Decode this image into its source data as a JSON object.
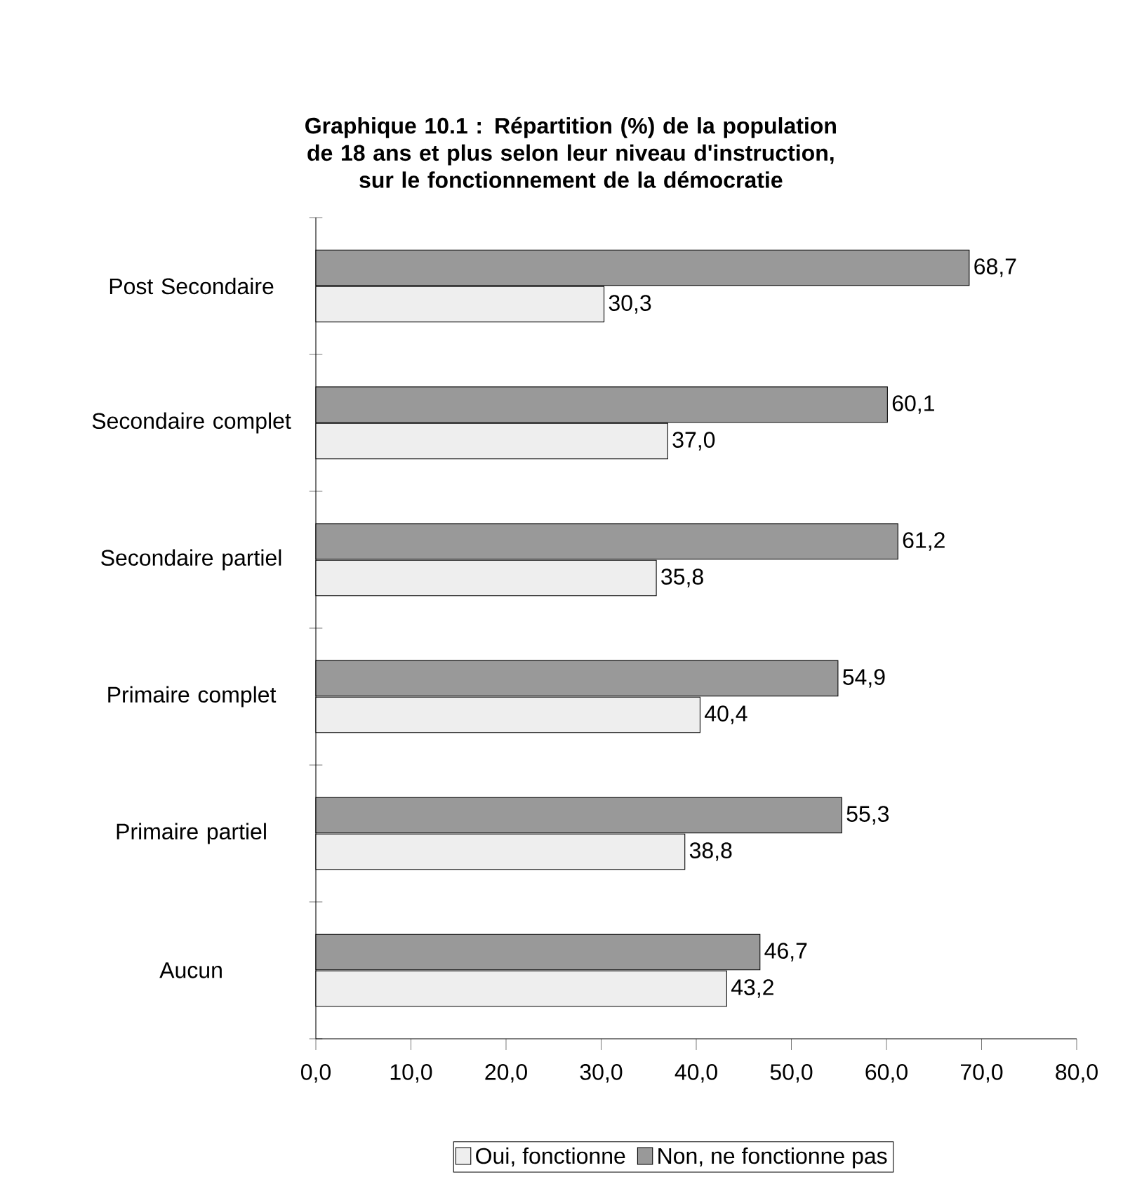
{
  "chart_data": {
    "type": "bar",
    "orientation": "horizontal",
    "title": "Graphique 10.1 : Répartition (%) de la population de 18 ans et plus selon leur niveau d'instruction, sur le fonctionnement de la démocratie",
    "categories": [
      "Post Secondaire",
      "Secondaire complet",
      "Secondaire partiel",
      "Primaire complet",
      "Primaire partiel",
      "Aucun"
    ],
    "series": [
      {
        "name": "Oui, fonctionne",
        "color": "#eeeeee",
        "values": [
          30.3,
          37.0,
          35.8,
          40.4,
          38.8,
          43.2
        ],
        "value_labels": [
          "30,3",
          "37,0",
          "35,8",
          "40,4",
          "38,8",
          "43,2"
        ]
      },
      {
        "name": "Non, ne fonctionne pas",
        "color": "#999999",
        "values": [
          68.7,
          60.1,
          61.2,
          54.9,
          55.3,
          46.7
        ],
        "value_labels": [
          "68,7",
          "60,1",
          "61,2",
          "54,9",
          "55,3",
          "46,7"
        ]
      }
    ],
    "xlim": [
      0,
      80
    ],
    "xticks": [
      {
        "value": 0,
        "label": "0,0"
      },
      {
        "value": 10,
        "label": "10,0"
      },
      {
        "value": 20,
        "label": "20,0"
      },
      {
        "value": 30,
        "label": "30,0"
      },
      {
        "value": 40,
        "label": "40,0"
      },
      {
        "value": 50,
        "label": "50,0"
      },
      {
        "value": 60,
        "label": "60,0"
      },
      {
        "value": 70,
        "label": "70,0"
      },
      {
        "value": 80,
        "label": "80,0"
      }
    ],
    "legend": "bottom"
  }
}
